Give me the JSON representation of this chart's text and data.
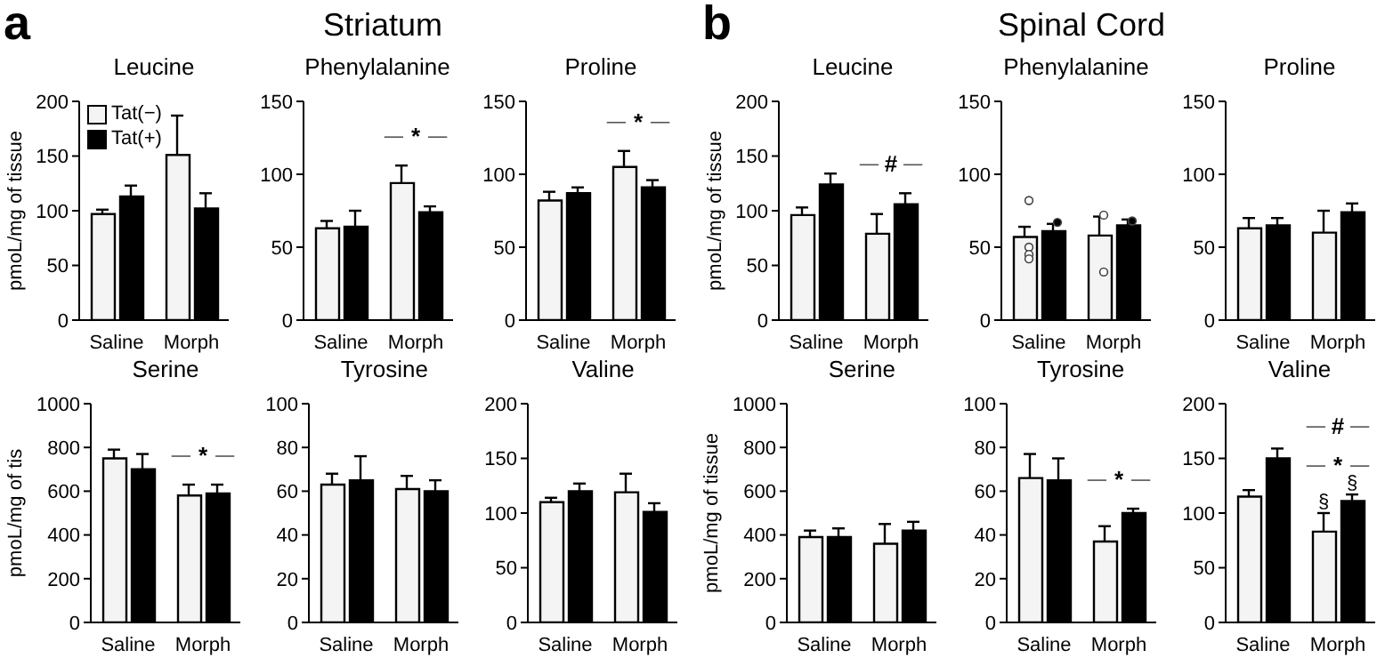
{
  "chart_data": [
    {
      "type": "other",
      "title": "Striatum",
      "annotations": [
        "a"
      ]
    },
    {
      "type": "other",
      "title": "Spinal Cord",
      "annotations": [
        "b"
      ]
    },
    {
      "type": "bar",
      "title": "Leucine",
      "ylabel": "pmoL/mg of tissue",
      "categories": [
        "Saline",
        "Morph"
      ],
      "ylim": [
        0,
        200
      ],
      "yticks": [
        0,
        50,
        100,
        150,
        200
      ],
      "legend": "top left",
      "series": [
        {
          "name": "Tat(−)",
          "color": "#f4f4f4",
          "values": [
            97,
            151
          ],
          "errors": [
            4,
            36
          ]
        },
        {
          "name": "Tat(+)",
          "color": "#000000",
          "values": [
            113,
            102
          ],
          "errors": [
            10,
            14
          ]
        }
      ]
    },
    {
      "type": "bar",
      "title": "Phenylalanine",
      "categories": [
        "Saline",
        "Morph"
      ],
      "ylim": [
        0,
        150
      ],
      "yticks": [
        0,
        50,
        100,
        150
      ],
      "annotations": [
        "*"
      ],
      "series": [
        {
          "color": "#f4f4f4",
          "values": [
            63,
            94
          ],
          "errors": [
            5,
            12
          ]
        },
        {
          "color": "#000000",
          "values": [
            64,
            74
          ],
          "errors": [
            11,
            4
          ]
        }
      ]
    },
    {
      "type": "bar",
      "title": "Proline",
      "categories": [
        "Saline",
        "Morph"
      ],
      "ylim": [
        0,
        150
      ],
      "yticks": [
        0,
        50,
        100,
        150
      ],
      "annotations": [
        "*"
      ],
      "series": [
        {
          "color": "#f4f4f4",
          "values": [
            82,
            105
          ],
          "errors": [
            6,
            11
          ]
        },
        {
          "color": "#000000",
          "values": [
            87,
            91
          ],
          "errors": [
            4,
            5
          ]
        }
      ]
    },
    {
      "type": "bar",
      "title": "Leucine",
      "ylabel": "pmoL/mg of tissue",
      "categories": [
        "Saline",
        "Morph"
      ],
      "ylim": [
        0,
        200
      ],
      "yticks": [
        0,
        50,
        100,
        150,
        200
      ],
      "annotations": [
        "#"
      ],
      "series": [
        {
          "color": "#f4f4f4",
          "values": [
            96,
            79
          ],
          "errors": [
            7,
            18
          ]
        },
        {
          "color": "#000000",
          "values": [
            124,
            106
          ],
          "errors": [
            10,
            10
          ]
        }
      ]
    },
    {
      "type": "bar",
      "title": "Phenylalanine",
      "categories": [
        "Saline",
        "Morph"
      ],
      "ylim": [
        0,
        150
      ],
      "yticks": [
        0,
        50,
        100,
        150
      ],
      "series": [
        {
          "color": "#f4f4f4",
          "values": [
            57,
            58
          ],
          "errors": [
            7,
            13
          ]
        },
        {
          "color": "#000000",
          "values": [
            61,
            65
          ],
          "errors": [
            5,
            4
          ]
        },
        {
          "type": "scatter",
          "color": "#ffffff",
          "x": [
            "Saline",
            "Saline",
            "Saline",
            "Saline",
            "Morph",
            "Morph"
          ],
          "values": [
            82,
            50,
            45,
            42,
            72,
            33
          ]
        },
        {
          "type": "scatter",
          "color": "#000000",
          "x": [
            "Saline",
            "Morph"
          ],
          "values": [
            67,
            68
          ]
        }
      ]
    },
    {
      "type": "bar",
      "title": "Proline",
      "categories": [
        "Saline",
        "Morph"
      ],
      "ylim": [
        0,
        150
      ],
      "yticks": [
        0,
        50,
        100,
        150
      ],
      "series": [
        {
          "color": "#f4f4f4",
          "values": [
            63,
            60
          ],
          "errors": [
            7,
            15
          ]
        },
        {
          "color": "#000000",
          "values": [
            65,
            74
          ],
          "errors": [
            5,
            6
          ]
        }
      ]
    },
    {
      "type": "bar",
      "title": "Serine",
      "ylabel": "pmoL/mg of tis",
      "categories": [
        "Saline",
        "Morph"
      ],
      "ylim": [
        0,
        1000
      ],
      "yticks": [
        0,
        200,
        400,
        600,
        800,
        1000
      ],
      "annotations": [
        "*"
      ],
      "series": [
        {
          "color": "#f4f4f4",
          "values": [
            750,
            580
          ],
          "errors": [
            40,
            50
          ]
        },
        {
          "color": "#000000",
          "values": [
            700,
            590
          ],
          "errors": [
            70,
            40
          ]
        }
      ]
    },
    {
      "type": "bar",
      "title": "Tyrosine",
      "categories": [
        "Saline",
        "Morph"
      ],
      "ylim": [
        0,
        100
      ],
      "yticks": [
        0,
        20,
        40,
        60,
        80,
        100
      ],
      "series": [
        {
          "color": "#f4f4f4",
          "values": [
            63,
            61
          ],
          "errors": [
            5,
            6
          ]
        },
        {
          "color": "#000000",
          "values": [
            65,
            60
          ],
          "errors": [
            11,
            5
          ]
        }
      ]
    },
    {
      "type": "bar",
      "title": "Valine",
      "categories": [
        "Saline",
        "Morph"
      ],
      "ylim": [
        0,
        200
      ],
      "yticks": [
        0,
        50,
        100,
        150,
        200
      ],
      "series": [
        {
          "color": "#f4f4f4",
          "values": [
            110,
            119
          ],
          "errors": [
            4,
            17
          ]
        },
        {
          "color": "#000000",
          "values": [
            120,
            101
          ],
          "errors": [
            7,
            8
          ]
        }
      ]
    },
    {
      "type": "bar",
      "title": "Serine",
      "ylabel": "pmoL/mg of tissue",
      "categories": [
        "Saline",
        "Morph"
      ],
      "ylim": [
        0,
        1000
      ],
      "yticks": [
        0,
        200,
        400,
        600,
        800,
        1000
      ],
      "series": [
        {
          "color": "#f4f4f4",
          "values": [
            390,
            360
          ],
          "errors": [
            30,
            90
          ]
        },
        {
          "color": "#000000",
          "values": [
            390,
            420
          ],
          "errors": [
            40,
            40
          ]
        }
      ]
    },
    {
      "type": "bar",
      "title": "Tyrosine",
      "categories": [
        "Saline",
        "Morph"
      ],
      "ylim": [
        0,
        100
      ],
      "yticks": [
        0,
        20,
        40,
        60,
        80,
        100
      ],
      "annotations": [
        "*"
      ],
      "series": [
        {
          "color": "#f4f4f4",
          "values": [
            66,
            37
          ],
          "errors": [
            11,
            7
          ]
        },
        {
          "color": "#000000",
          "values": [
            65,
            50
          ],
          "errors": [
            10,
            2
          ]
        }
      ]
    },
    {
      "type": "bar",
      "title": "Valine",
      "categories": [
        "Saline",
        "Morph"
      ],
      "ylim": [
        0,
        200
      ],
      "yticks": [
        0,
        50,
        100,
        150,
        200
      ],
      "annotations": [
        "#",
        "*",
        {
          "text": "§",
          "x": "Morph",
          "y": 100
        },
        {
          "text": "§",
          "x": "Morph",
          "y": 117
        }
      ],
      "series": [
        {
          "color": "#f4f4f4",
          "values": [
            115,
            83
          ],
          "errors": [
            6,
            17
          ]
        },
        {
          "color": "#000000",
          "values": [
            150,
            111
          ],
          "errors": [
            9,
            6
          ]
        }
      ]
    }
  ]
}
